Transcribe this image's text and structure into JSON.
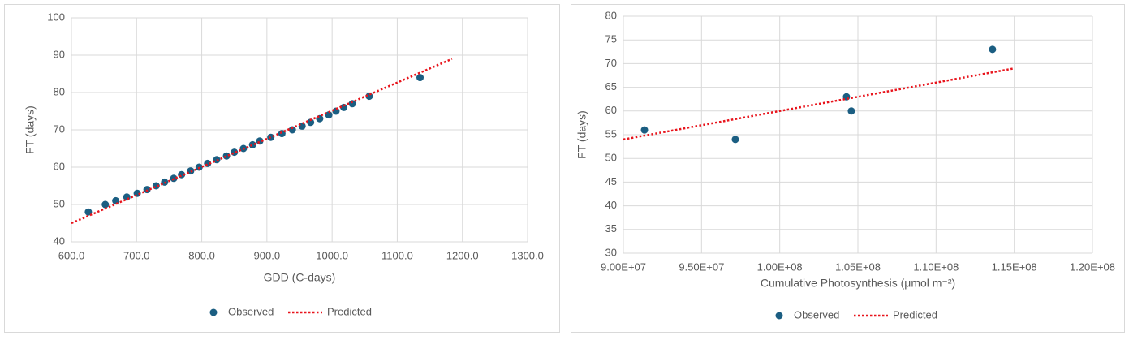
{
  "chart_data": [
    {
      "type": "scatter",
      "xlabel": "GDD (C-days)",
      "ylabel": "FT (days)",
      "xlim": [
        600,
        1300
      ],
      "xticks": [
        {
          "value": 600,
          "label": "600.0"
        },
        {
          "value": 700,
          "label": "700.0"
        },
        {
          "value": 800,
          "label": "800.0"
        },
        {
          "value": 900,
          "label": "900.0"
        },
        {
          "value": 1000,
          "label": "1000.0"
        },
        {
          "value": 1100,
          "label": "1100.0"
        },
        {
          "value": 1200,
          "label": "1200.0"
        },
        {
          "value": 1300,
          "label": "1300.0"
        }
      ],
      "ylim": [
        40,
        100
      ],
      "yticks": [
        40,
        50,
        60,
        70,
        80,
        90,
        100
      ],
      "grid": true,
      "legend": "bottom",
      "series": [
        {
          "name": "Observed",
          "color": "#1b5e82",
          "style": "marker",
          "x": [
            626,
            652,
            668,
            685,
            701,
            716,
            730,
            743,
            757,
            769,
            783,
            796,
            809,
            823,
            838,
            850,
            864,
            878,
            889,
            906,
            923,
            939,
            954,
            967,
            981,
            995,
            1006,
            1018,
            1031,
            1057,
            1135
          ],
          "values": [
            48,
            50,
            51,
            52,
            53,
            54,
            55,
            56,
            57,
            58,
            59,
            60,
            61,
            62,
            63,
            64,
            65,
            66,
            67,
            68,
            69,
            70,
            71,
            72,
            73,
            74,
            75,
            76,
            77,
            79,
            84
          ]
        },
        {
          "name": "Predicted",
          "color": "#e8141c",
          "style": "dotted",
          "x": [
            600,
            1184
          ],
          "values": [
            45,
            89
          ]
        }
      ]
    },
    {
      "type": "scatter",
      "xlabel": "Cumulative Photosynthesis (μmol m⁻²)",
      "ylabel": "FT (days)",
      "xlim": [
        90000000,
        120000000
      ],
      "xticks": [
        {
          "value": 90000000,
          "label": "9.00E+07"
        },
        {
          "value": 95000000,
          "label": "9.50E+07"
        },
        {
          "value": 100000000,
          "label": "1.00E+08"
        },
        {
          "value": 105000000,
          "label": "1.05E+08"
        },
        {
          "value": 110000000,
          "label": "1.10E+08"
        },
        {
          "value": 115000000,
          "label": "1.15E+08"
        },
        {
          "value": 120000000,
          "label": "1.20E+08"
        }
      ],
      "ylim": [
        30,
        80
      ],
      "yticks": [
        30,
        35,
        40,
        45,
        50,
        55,
        60,
        65,
        70,
        75,
        80
      ],
      "grid": true,
      "legend": "bottom",
      "series": [
        {
          "name": "Observed",
          "color": "#1b5e82",
          "style": "marker",
          "x": [
            91350000,
            97160000,
            104270000,
            104580000,
            113610000
          ],
          "values": [
            56,
            54,
            63,
            60,
            73
          ]
        },
        {
          "name": "Predicted",
          "color": "#e8141c",
          "style": "dotted",
          "x": [
            90000000,
            115000000
          ],
          "values": [
            54,
            69
          ]
        }
      ]
    }
  ]
}
